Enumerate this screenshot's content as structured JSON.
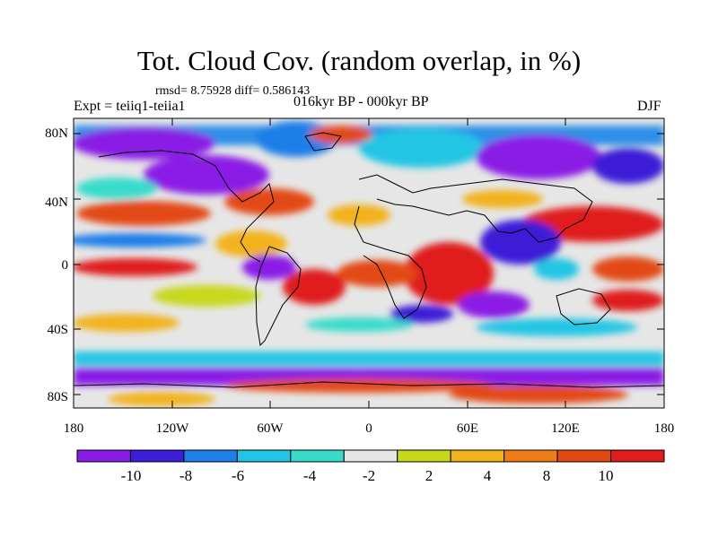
{
  "title": "Tot. Cloud Cov. (random overlap, in %)",
  "stats": "rmsd= 8.75928 diff= 0.586143",
  "experiment": "Expt = teiiq1-teiia1",
  "period": "016kyr BP - 000kyr BP",
  "season": "DJF",
  "axes": {
    "lat_labels": [
      "80N",
      "40N",
      "0",
      "40S",
      "80S"
    ],
    "lon_labels": [
      "180",
      "120W",
      "60W",
      "0",
      "60E",
      "120E",
      "180"
    ]
  },
  "colorbar": {
    "labels": [
      "-10",
      "-8",
      "-6",
      "-4",
      "-2",
      "2",
      "4",
      "8",
      "10"
    ],
    "colors": [
      "#8a1ae6",
      "#3d1ed8",
      "#1f7ee8",
      "#22c6e4",
      "#38dccb",
      "#e6e6e6",
      "#c8d81a",
      "#f2b21c",
      "#ee7d18",
      "#e34a12",
      "#e01c1c"
    ]
  }
}
